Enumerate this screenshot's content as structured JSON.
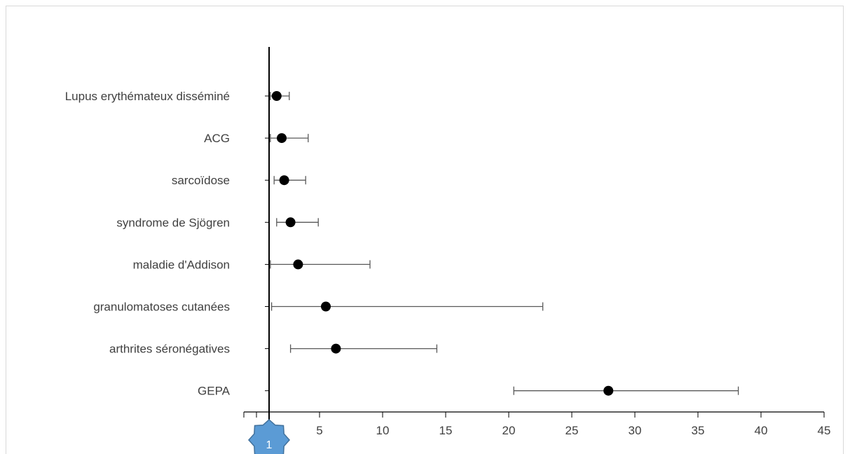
{
  "chart_data": {
    "type": "scatter",
    "subtype": "forest-plot",
    "title": "",
    "xlabel": "",
    "ylabel": "",
    "xlim": [
      -1,
      45
    ],
    "xticks": [
      5,
      10,
      15,
      20,
      25,
      30,
      35,
      40,
      45
    ],
    "reference_line_x": 1,
    "reference_marker_label": "1",
    "grid": false,
    "legend": "none",
    "categories": [
      "Lupus erythémateux disséminé",
      "ACG",
      "sarcoïdose",
      "syndrome de Sjögren",
      "maladie d'Addison",
      "granulomatoses cutanées",
      "arthrites séronégatives",
      "GEPA"
    ],
    "series": [
      {
        "estimate": [
          1.6,
          2.0,
          2.2,
          2.7,
          3.3,
          5.5,
          6.3,
          27.9
        ],
        "lower": [
          1.1,
          1.1,
          1.4,
          1.6,
          1.1,
          1.2,
          2.7,
          20.4
        ],
        "upper": [
          2.6,
          4.1,
          3.9,
          4.9,
          9.0,
          22.7,
          14.3,
          38.2
        ]
      }
    ],
    "colors": {
      "marker": "#000000",
      "error_bar": "#595959",
      "axis": "#000000",
      "text": "#404040",
      "badge": "#5b9bd5",
      "badge_border": "#41719c"
    }
  }
}
